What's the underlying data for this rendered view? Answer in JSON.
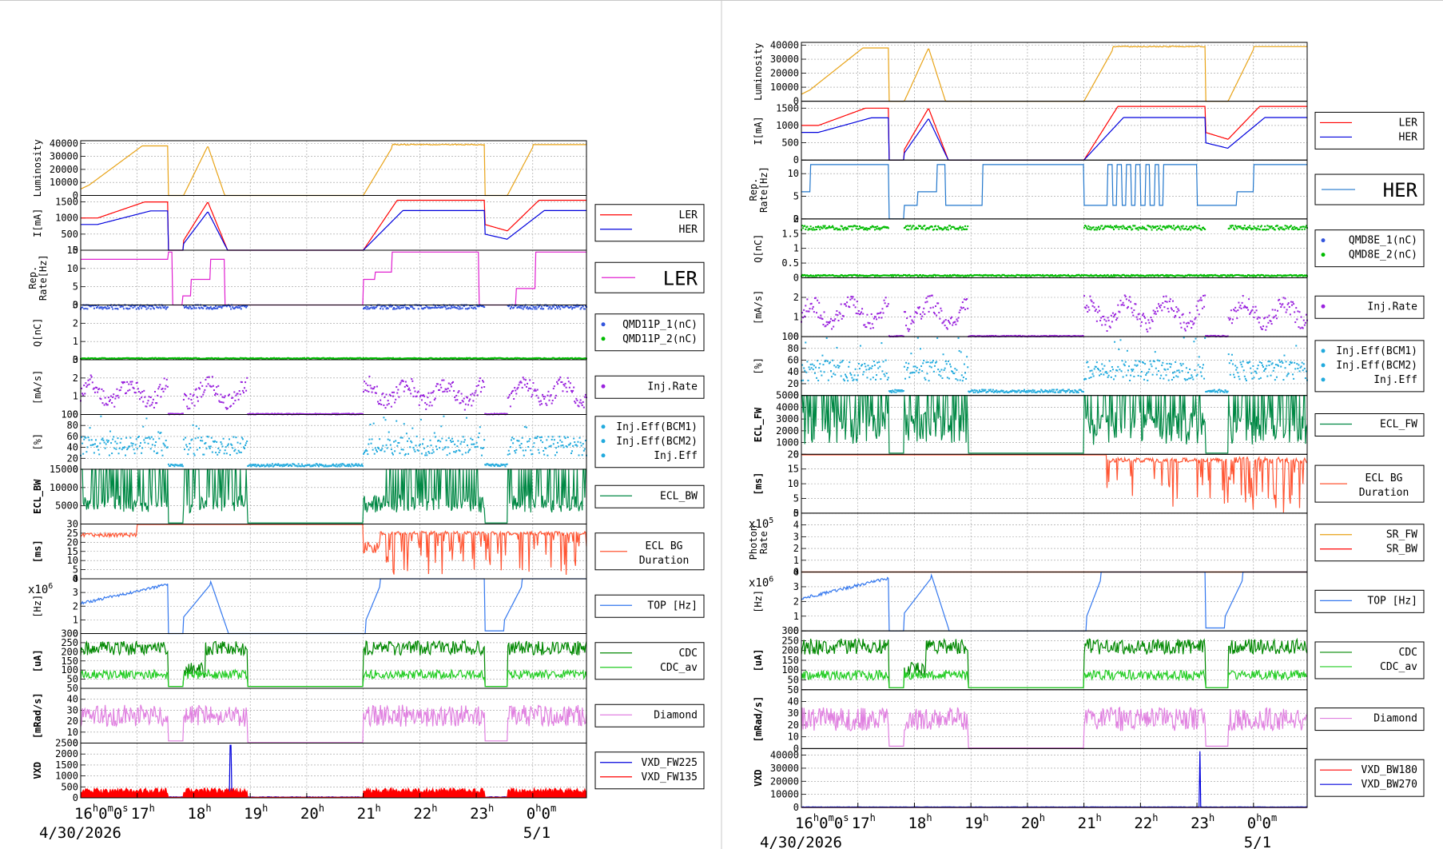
{
  "colors": {
    "orange": "#e8a317",
    "red": "#ff0000",
    "blue": "#0000dd",
    "magenta": "#e020d0",
    "royal": "#3355dd",
    "green": "#00bb00",
    "purple": "#9922dd",
    "cyan": "#22aadd",
    "darkgreen": "#008844",
    "salmon": "#ff5533",
    "lightblue": "#3377ee",
    "cdc": "#008800",
    "cdcav": "#22cc22",
    "violet": "#e080e0",
    "skyblue": "#2277cc",
    "gold": "#e8a317"
  },
  "time_axis": {
    "ticks": [
      {
        "t": 0,
        "label": "16",
        "sup": "h",
        "extra": "0",
        "extra_sup": "m",
        "extra2": "0",
        "extra2_sup": "s"
      },
      {
        "t": 1,
        "label": "17",
        "sup": "h"
      },
      {
        "t": 2,
        "label": "18",
        "sup": "h"
      },
      {
        "t": 3,
        "label": "19",
        "sup": "h"
      },
      {
        "t": 4,
        "label": "20",
        "sup": "h"
      },
      {
        "t": 5,
        "label": "21",
        "sup": "h"
      },
      {
        "t": 6,
        "label": "22",
        "sup": "h"
      },
      {
        "t": 7,
        "label": "23",
        "sup": "h"
      },
      {
        "t": 8,
        "label": "0",
        "sup": "h",
        "extra": "0",
        "extra_sup": "m"
      }
    ],
    "date_left": "4/30/2026",
    "date_right": "5/1",
    "range_hours": [
      0,
      8.95
    ]
  },
  "chart_data": [
    {
      "id": "left",
      "type": "line",
      "panels": [
        {
          "ylabel": "Luminosity",
          "ylim": [
            0,
            42000
          ],
          "yticks": [
            0,
            10000,
            20000,
            30000,
            40000
          ],
          "legend": [],
          "series": [
            {
              "name": "Luminosity",
              "color_key": "orange",
              "shape": "lumi"
            }
          ]
        },
        {
          "ylabel": "I[mA]",
          "ylim": [
            0,
            1700
          ],
          "yticks": [
            0,
            500,
            1000,
            1500
          ],
          "legend": [
            "LER",
            "HER"
          ],
          "series": [
            {
              "name": "LER",
              "color_key": "red",
              "shape": "ler"
            },
            {
              "name": "HER",
              "color_key": "blue",
              "shape": "her"
            }
          ]
        },
        {
          "ylabel": "Rep. Rate[Hz]",
          "ylim": [
            0,
            15
          ],
          "yticks": [
            0,
            5,
            10,
            15
          ],
          "legend": [
            "LER"
          ],
          "legend_big": true,
          "series": [
            {
              "name": "LER",
              "color_key": "magenta",
              "shape": "rep"
            }
          ]
        },
        {
          "ylabel": "Q[nC]",
          "ylim": [
            0,
            3
          ],
          "yticks": [
            0,
            1,
            2,
            3
          ],
          "legend": [
            "QMD11P_1(nC)",
            "QMD11P_2(nC)"
          ],
          "legend_dots": true,
          "series": [
            {
              "name": "QMD11P_1(nC)",
              "color_key": "royal",
              "shape": "qhigh"
            },
            {
              "name": "QMD11P_2(nC)",
              "color_key": "green",
              "shape": "qlow"
            }
          ]
        },
        {
          "ylabel": "[mA/s]",
          "ylim": [
            0,
            3
          ],
          "yticks": [
            0,
            1,
            2,
            3
          ],
          "legend": [
            "Inj.Rate"
          ],
          "legend_dots": true,
          "series": [
            {
              "name": "Inj.Rate",
              "color_key": "purple",
              "shape": "injrate"
            }
          ]
        },
        {
          "ylabel": "[%]",
          "ylim": [
            0,
            100
          ],
          "yticks": [
            0,
            20,
            40,
            60,
            80,
            100
          ],
          "legend": [
            "Inj.Eff(BCM1)",
            "Inj.Eff(BCM2)",
            "Inj.Eff"
          ],
          "legend_dots": true,
          "series": [
            {
              "name": "Inj.Eff",
              "color_key": "cyan",
              "shape": "injeff"
            }
          ]
        },
        {
          "ylabel": "ECL_BW",
          "ylim": [
            0,
            15000
          ],
          "yticks": [
            5000,
            10000,
            15000
          ],
          "legend": [
            "ECL_BW"
          ],
          "series": [
            {
              "name": "ECL_BW",
              "color_key": "darkgreen",
              "shape": "ecl"
            }
          ]
        },
        {
          "ylabel": "[ms]",
          "ylim": [
            0,
            30
          ],
          "yticks": [
            0,
            5,
            10,
            15,
            20,
            25,
            30
          ],
          "legend": [
            "ECL BG",
            "Duration"
          ],
          "legend_multiline": true,
          "series": [
            {
              "name": "ECL BG Duration",
              "color_key": "salmon",
              "shape": "dur"
            }
          ]
        },
        {
          "ylabel": "[Hz]",
          "exp": "x10",
          "exp_sup": "6",
          "ylim": [
            0,
            4
          ],
          "yticks": [
            0,
            1,
            2,
            3,
            4
          ],
          "legend": [
            "TOP [Hz]"
          ],
          "series": [
            {
              "name": "TOP [Hz]",
              "color_key": "lightblue",
              "shape": "top"
            }
          ]
        },
        {
          "ylabel": "[uA]",
          "ylim": [
            0,
            300
          ],
          "yticks": [
            50,
            100,
            150,
            200,
            250,
            300
          ],
          "legend": [
            "CDC",
            "CDC_av"
          ],
          "series": [
            {
              "name": "CDC",
              "color_key": "cdc",
              "shape": "cdc"
            },
            {
              "name": "CDC_av",
              "color_key": "cdcav",
              "shape": "cdcav"
            }
          ]
        },
        {
          "ylabel": "[mRad/s]",
          "ylim": [
            0,
            50
          ],
          "yticks": [
            0,
            10,
            20,
            30,
            40,
            50
          ],
          "legend": [
            "Diamond"
          ],
          "series": [
            {
              "name": "Diamond",
              "color_key": "violet",
              "shape": "diamond"
            }
          ]
        },
        {
          "ylabel": "VXD",
          "ylim": [
            0,
            2500
          ],
          "yticks": [
            0,
            500,
            1000,
            1500,
            2000,
            2500
          ],
          "legend": [
            "VXD_FW225",
            "VXD_FW135"
          ],
          "series": [
            {
              "name": "VXD_FW225",
              "color_key": "blue",
              "shape": "vxdspike"
            },
            {
              "name": "VXD_FW135",
              "color_key": "red",
              "shape": "vxdfill"
            }
          ]
        }
      ]
    },
    {
      "id": "right",
      "type": "line",
      "panels": [
        {
          "ylabel": "Luminosity",
          "ylim": [
            0,
            42000
          ],
          "yticks": [
            0,
            10000,
            20000,
            30000,
            40000
          ],
          "legend": [],
          "series": [
            {
              "name": "Luminosity",
              "color_key": "orange",
              "shape": "lumi"
            }
          ]
        },
        {
          "ylabel": "I[mA]",
          "ylim": [
            0,
            1700
          ],
          "yticks": [
            0,
            500,
            1000,
            1500
          ],
          "legend": [
            "LER",
            "HER"
          ],
          "series": [
            {
              "name": "LER",
              "color_key": "red",
              "shape": "ler"
            },
            {
              "name": "HER",
              "color_key": "blue",
              "shape": "her"
            }
          ]
        },
        {
          "ylabel": "Rep. Rate[Hz]",
          "ylim": [
            0,
            13
          ],
          "yticks": [
            0,
            5,
            10
          ],
          "legend": [
            "HER"
          ],
          "legend_big": true,
          "series": [
            {
              "name": "HER",
              "color_key": "skyblue",
              "shape": "repher"
            }
          ]
        },
        {
          "ylabel": "Q[nC]",
          "ylim": [
            0,
            2
          ],
          "yticks": [
            0,
            0.5,
            1,
            1.5,
            2
          ],
          "legend": [
            "QMD8E_1(nC)",
            "QMD8E_2(nC)"
          ],
          "legend_dots": true,
          "series": [
            {
              "name": "QMD8E_1(nC)",
              "color_key": "green",
              "shape": "qher"
            },
            {
              "name": "QMD8E_2(nC)",
              "color_key": "green",
              "shape": "qlow"
            }
          ]
        },
        {
          "ylabel": "[mA/s]",
          "ylim": [
            0,
            3
          ],
          "yticks": [
            0,
            1,
            2
          ],
          "legend": [
            "Inj.Rate"
          ],
          "legend_dots": true,
          "series": [
            {
              "name": "Inj.Rate",
              "color_key": "purple",
              "shape": "injrate"
            }
          ]
        },
        {
          "ylabel": "[%]",
          "ylim": [
            0,
            100
          ],
          "yticks": [
            0,
            20,
            40,
            60,
            80,
            100
          ],
          "legend": [
            "Inj.Eff(BCM1)",
            "Inj.Eff(BCM2)",
            "Inj.Eff"
          ],
          "legend_dots": true,
          "series": [
            {
              "name": "Inj.Eff",
              "color_key": "cyan",
              "shape": "injeff"
            }
          ]
        },
        {
          "ylabel": "ECL_FW",
          "ylim": [
            0,
            5000
          ],
          "yticks": [
            0,
            1000,
            2000,
            3000,
            4000,
            5000
          ],
          "legend": [
            "ECL_FW"
          ],
          "series": [
            {
              "name": "ECL_FW",
              "color_key": "darkgreen",
              "shape": "eclfw"
            }
          ]
        },
        {
          "ylabel": "[ms]",
          "ylim": [
            0,
            20
          ],
          "yticks": [
            0,
            5,
            10,
            15,
            20
          ],
          "legend": [
            "ECL BG",
            "Duration"
          ],
          "legend_multiline": true,
          "series": [
            {
              "name": "ECL BG Duration",
              "color_key": "salmon",
              "shape": "durher"
            }
          ]
        },
        {
          "ylabel": "Photon Rate",
          "exp": "x10",
          "exp_sup": "5",
          "ylim": [
            0,
            5
          ],
          "yticks": [
            0,
            1,
            2,
            3,
            4,
            5
          ],
          "legend": [
            "SR_FW",
            "SR_BW"
          ],
          "series": [
            {
              "name": "SR_FW",
              "color_key": "gold",
              "shape": "flat0"
            },
            {
              "name": "SR_BW",
              "color_key": "red",
              "shape": "flat0"
            }
          ]
        },
        {
          "ylabel": "[Hz]",
          "exp": "x10",
          "exp_sup": "6",
          "ylim": [
            0,
            4
          ],
          "yticks": [
            0,
            1,
            2,
            3,
            4
          ],
          "legend": [
            "TOP [Hz]"
          ],
          "series": [
            {
              "name": "TOP [Hz]",
              "color_key": "lightblue",
              "shape": "top"
            }
          ]
        },
        {
          "ylabel": "[uA]",
          "ylim": [
            0,
            300
          ],
          "yticks": [
            50,
            100,
            150,
            200,
            250,
            300
          ],
          "legend": [
            "CDC",
            "CDC_av"
          ],
          "series": [
            {
              "name": "CDC",
              "color_key": "cdc",
              "shape": "cdc"
            },
            {
              "name": "CDC_av",
              "color_key": "cdcav",
              "shape": "cdcav"
            }
          ]
        },
        {
          "ylabel": "[mRad/s]",
          "ylim": [
            0,
            50
          ],
          "yticks": [
            0,
            10,
            20,
            30,
            40,
            50
          ],
          "legend": [
            "Diamond"
          ],
          "series": [
            {
              "name": "Diamond",
              "color_key": "violet",
              "shape": "diamond"
            }
          ]
        },
        {
          "ylabel": "VXD",
          "ylim": [
            0,
            45000
          ],
          "yticks": [
            0,
            10000,
            20000,
            30000,
            40000
          ],
          "legend": [
            "VXD_BW180",
            "VXD_BW270"
          ],
          "series": [
            {
              "name": "VXD_BW180",
              "color_key": "red",
              "shape": "flat0"
            },
            {
              "name": "VXD_BW270",
              "color_key": "blue",
              "shape": "vxdspike2"
            }
          ]
        }
      ]
    }
  ]
}
